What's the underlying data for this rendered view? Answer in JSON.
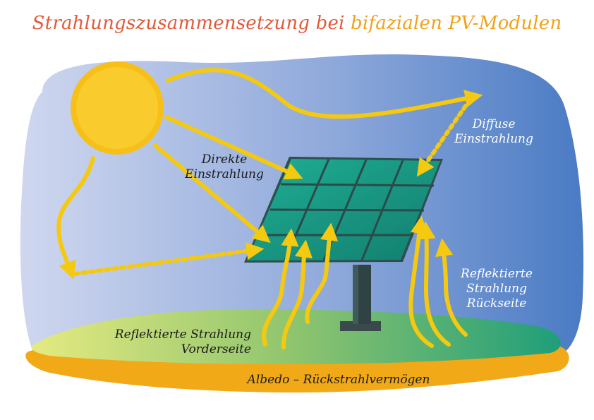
{
  "title": {
    "main": "Strahlungszusammensetzung bei ",
    "accent": "bifazialen PV-Modulen"
  },
  "labels": {
    "direct_line1": "Direkte",
    "direct_line2": "Einstrahlung",
    "diffuse_line1": "Diffuse",
    "diffuse_line2": "Einstrahlung",
    "refl_back_line1": "Reflektierte",
    "refl_back_line2": "Strahlung",
    "refl_back_line3": "Rückseite",
    "refl_front_line1": "Reflektierte Strahlung",
    "refl_front_line2": "Vorderseite",
    "albedo": "Albedo – Rückstrahlvermögen"
  },
  "colors": {
    "sky_left": "#c9d4ee",
    "sky_right": "#4f7fc7",
    "sun": "#f7c019",
    "arrow": "#f5c90f",
    "panel": "#169a86",
    "ground_left": "#e2e87c",
    "ground_right": "#23a07a",
    "ground_rim": "#f2a917",
    "pole": "#2c3e40"
  }
}
